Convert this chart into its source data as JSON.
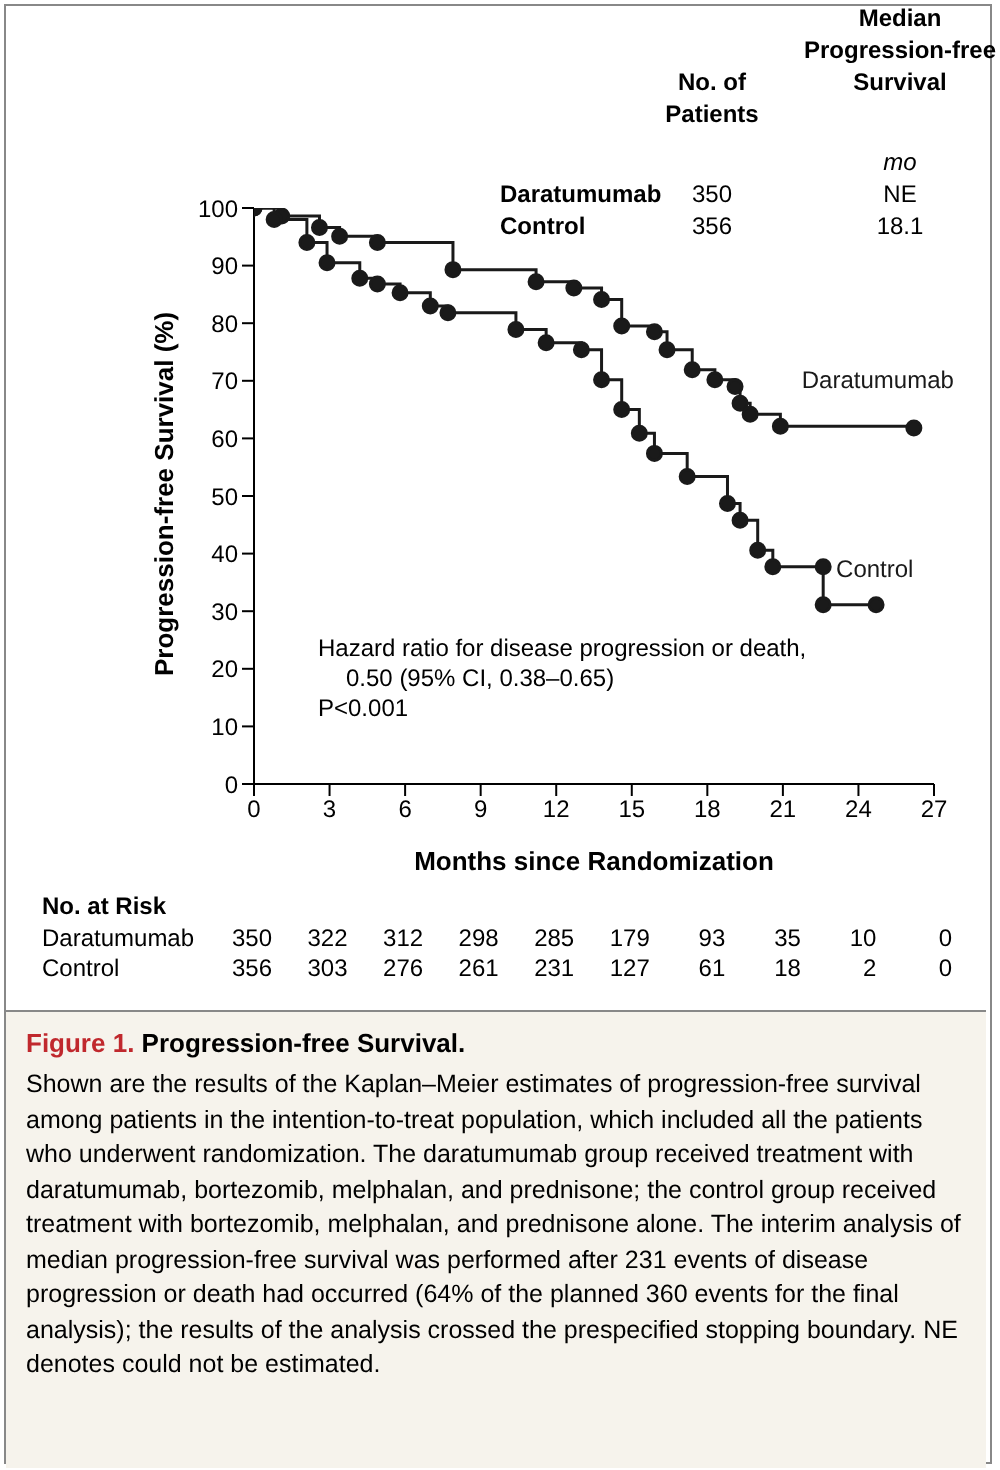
{
  "chart_data": {
    "type": "step",
    "title": "Figure 1. Progression-free Survival.",
    "xlabel": "Months since Randomization",
    "ylabel": "Progression-free Survival (%)",
    "xlim": [
      0,
      27
    ],
    "xticks": [
      0,
      3,
      6,
      9,
      12,
      15,
      18,
      21,
      24,
      27
    ],
    "ylim": [
      0,
      100
    ],
    "yticks": [
      0,
      10,
      20,
      30,
      40,
      50,
      60,
      70,
      80,
      90,
      100
    ],
    "marker": "circle",
    "series": [
      {
        "name": "Daratumumab",
        "color": "#1a1a1a",
        "x": [
          0,
          1.1,
          2.6,
          3.4,
          4.9,
          7.9,
          11.2,
          12.7,
          13.8,
          14.6,
          15.9,
          16.4,
          17.4,
          18.3,
          19.1,
          19.3,
          19.7,
          20.9,
          26.2
        ],
        "values": [
          100,
          98.6,
          96.6,
          95.1,
          94,
          89.3,
          87.2,
          86.1,
          84.1,
          79.5,
          78.5,
          75.4,
          71.9,
          70.2,
          69,
          66.1,
          64.2,
          62.1,
          61.8
        ]
      },
      {
        "name": "Control",
        "color": "#1a1a1a",
        "x": [
          0,
          0.8,
          2.1,
          2.9,
          4.2,
          4.9,
          5.8,
          7,
          7.7,
          10.4,
          11.6,
          13,
          13.8,
          14.6,
          15.3,
          15.9,
          17.2,
          18.8,
          19.3,
          20,
          20.6,
          22.6,
          22.6,
          24.7
        ],
        "values": [
          100,
          98,
          94,
          90.5,
          87.8,
          86.8,
          85.3,
          83,
          81.8,
          78.9,
          76.6,
          75.4,
          70.2,
          65,
          60.9,
          57.4,
          53.4,
          48.7,
          45.8,
          40.6,
          37.7,
          37.7,
          31.1,
          31.1
        ]
      }
    ],
    "annotations": [
      "No. of Patients",
      "Median Progression-free Survival",
      "mo",
      "Daratumumab",
      "350",
      "NE",
      "Control",
      "356",
      "18.1",
      "Hazard ratio for disease progression or death,",
      "0.50 (95% CI, 0.38–0.65)",
      "P<0.001",
      "No. at Risk",
      "Daratumumab 350 322 312 298 285 179 93 35 10 0",
      "Control 356 303 276 261 231 127 61 18 2 0",
      "Shown are the results of the Kaplan–Meier estimates of progression-free survival among patients in the intention-to-treat population, which included all the patients who underwent randomization. The daratumumab group received treatment with daratumumab, bortezomib, melphalan, and prednisone; the control group received treatment with bortezomib, melphalan, and prednisone alone. The interim analysis of median progression-free survival was performed after 231 events of disease progression or death had occurred (64% of the planned 360 events for the final analysis); the results of the analysis crossed the prespecified stopping boundary. NE denotes could not be estimated."
    ]
  }
}
